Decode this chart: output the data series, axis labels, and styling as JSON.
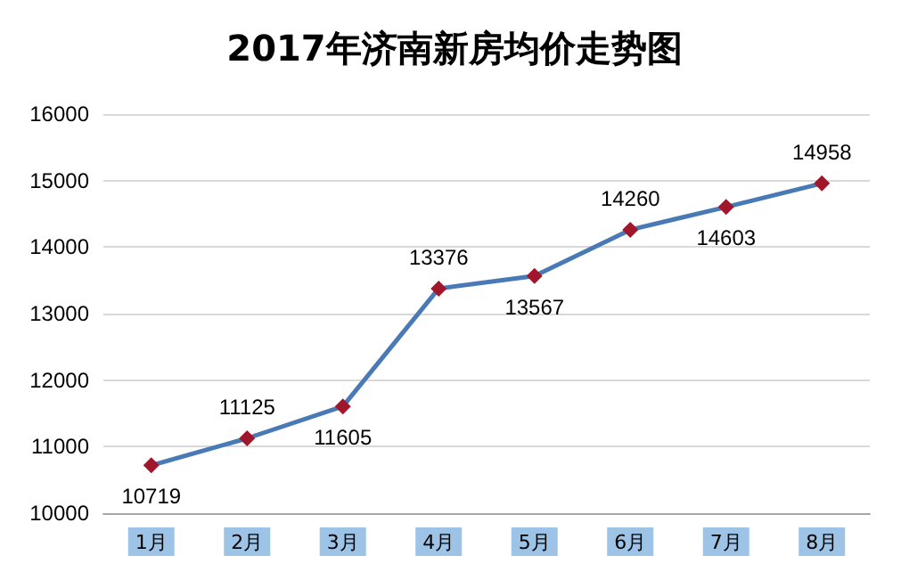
{
  "chart_data": {
    "type": "line",
    "title": "2017年济南新房均价走势图",
    "categories": [
      "1月",
      "2月",
      "3月",
      "4月",
      "5月",
      "6月",
      "7月",
      "8月"
    ],
    "series": [
      {
        "color": "#4a7ab5",
        "colors": [
          "#a0162a",
          "#a0162a",
          "#a0162a",
          "#a0162a",
          "#a0162a",
          "#a0162a",
          "#a0162a",
          "#a0162a"
        ],
        "values": [
          10719,
          11125,
          11605,
          13376,
          13567,
          14260,
          14603,
          14958
        ]
      }
    ],
    "ylim": [
      10000,
      16000
    ],
    "yticks": [
      10000,
      11000,
      12000,
      13000,
      14000,
      15000,
      16000
    ],
    "grid": "y",
    "marker": "diamond",
    "line_style": "solid",
    "data_labels": true
  }
}
